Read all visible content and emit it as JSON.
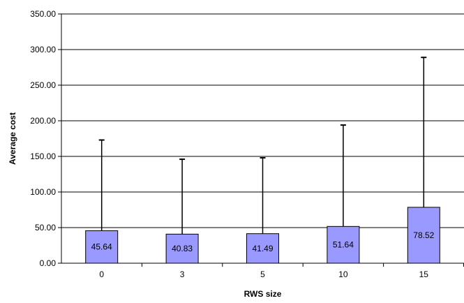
{
  "chart_data": {
    "type": "bar",
    "categories": [
      "0",
      "3",
      "5",
      "10",
      "15"
    ],
    "values": [
      45.64,
      40.83,
      41.49,
      51.64,
      78.52
    ],
    "value_labels": [
      "45.64",
      "40.83",
      "41.49",
      "51.64",
      "78.52"
    ],
    "error_upper": [
      173,
      146,
      148,
      194,
      289
    ],
    "xlabel": "RWS size",
    "ylabel": "Average cost",
    "ylim": [
      0,
      350
    ],
    "yticks": [
      0,
      50,
      100,
      150,
      200,
      250,
      300,
      350
    ],
    "ytick_labels": [
      "0.00",
      "50.00",
      "100.00",
      "150.00",
      "200.00",
      "250.00",
      "300.00",
      "350.00"
    ],
    "grid": true,
    "legend": "none",
    "colors": {
      "bar_fill": "#9999ff",
      "bar_stroke": "#000000",
      "gridline": "#000000",
      "axis": "#000000",
      "error_bar": "#000000"
    }
  }
}
